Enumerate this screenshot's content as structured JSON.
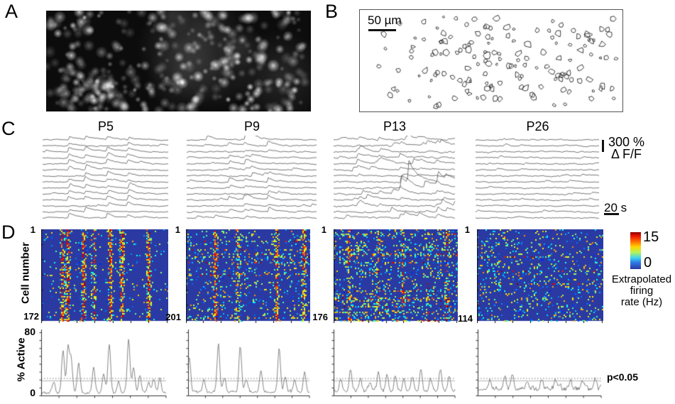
{
  "figure": {
    "panel_a": {
      "label": "A"
    },
    "panel_b": {
      "label": "B",
      "scale_bar_label": "50 µm"
    },
    "panel_c": {
      "label": "C",
      "ages": [
        {
          "label": "P5"
        },
        {
          "label": "P9"
        },
        {
          "label": "P13"
        },
        {
          "label": "P26"
        }
      ],
      "amplitude_scale_value": "300 %",
      "amplitude_scale_unit": "Δ F/F",
      "time_scale": "20 s"
    },
    "panel_d": {
      "label": "D",
      "y_axis_label": "Cell number",
      "heatmaps": [
        {
          "first": "1",
          "last": "172"
        },
        {
          "first": "1",
          "last": "201"
        },
        {
          "first": "1",
          "last": "176"
        },
        {
          "first": "1",
          "last": "114"
        }
      ],
      "colorbar": {
        "max": "15",
        "min": "0",
        "caption_line1": "Extrapolated",
        "caption_line2": "firing",
        "caption_line3": "rate (Hz)"
      },
      "activity": {
        "y_label": "% Active",
        "y_max": "80",
        "y_min": "0",
        "significance": "p<0.05"
      }
    }
  },
  "chart_data": [
    {
      "type": "heatmap",
      "panel": "D",
      "colormap": "jet",
      "value_range": [
        0,
        15
      ],
      "colorbar_label": "Extrapolated firing rate (Hz)",
      "row_axis_label": "Cell number",
      "columns": [
        {
          "age": "P5",
          "n_cells": 172,
          "sync_event_positions": [
            0.16,
            0.205,
            0.325,
            0.41,
            0.54,
            0.63,
            0.84
          ],
          "stripe_strength": 0.6,
          "background_activity": 0.035,
          "hot_rows": 0
        },
        {
          "age": "P9",
          "n_cells": 201,
          "sync_event_positions": [
            0.23,
            0.41,
            0.72,
            0.94
          ],
          "stripe_strength": 0.52,
          "background_activity": 0.09,
          "hot_rows": 9
        },
        {
          "age": "P13",
          "n_cells": 176,
          "sync_event_positions": [
            0.12,
            0.35,
            0.55,
            0.75,
            0.9
          ],
          "stripe_strength": 0.3,
          "background_activity": 0.13,
          "hot_rows": 14
        },
        {
          "age": "P26",
          "n_cells": 114,
          "sync_event_positions": [],
          "stripe_strength": 0,
          "background_activity": 0.11,
          "hot_rows": 3
        }
      ]
    },
    {
      "type": "line",
      "panel": "D",
      "ylabel": "% Active",
      "ylim": [
        0,
        80
      ],
      "threshold_value": 22,
      "threshold_label": "p<0.05",
      "series": [
        {
          "age": "P5",
          "peaks": [
            [
              0.1,
              14
            ],
            [
              0.175,
              55
            ],
            [
              0.215,
              57
            ],
            [
              0.24,
              42
            ],
            [
              0.3,
              38
            ],
            [
              0.42,
              33
            ],
            [
              0.5,
              25
            ],
            [
              0.545,
              62
            ],
            [
              0.62,
              15
            ],
            [
              0.7,
              68
            ],
            [
              0.74,
              33
            ],
            [
              0.79,
              22
            ],
            [
              0.86,
              14
            ],
            [
              0.9,
              18
            ],
            [
              0.95,
              20
            ]
          ]
        },
        {
          "age": "P9",
          "peaks": [
            [
              0.01,
              44
            ],
            [
              0.13,
              16
            ],
            [
              0.25,
              60
            ],
            [
              0.3,
              18
            ],
            [
              0.43,
              58
            ],
            [
              0.48,
              16
            ],
            [
              0.6,
              24
            ],
            [
              0.75,
              55
            ],
            [
              0.8,
              20
            ],
            [
              0.88,
              14
            ],
            [
              0.96,
              26
            ]
          ]
        },
        {
          "age": "P13",
          "peaks": [
            [
              0.06,
              16
            ],
            [
              0.14,
              28
            ],
            [
              0.22,
              16
            ],
            [
              0.3,
              12
            ],
            [
              0.37,
              24
            ],
            [
              0.44,
              20
            ],
            [
              0.51,
              18
            ],
            [
              0.58,
              14
            ],
            [
              0.65,
              19
            ],
            [
              0.72,
              26
            ],
            [
              0.8,
              16
            ],
            [
              0.88,
              28
            ],
            [
              0.95,
              16
            ]
          ]
        },
        {
          "age": "P26",
          "peaks": [
            [
              0.1,
              12
            ],
            [
              0.22,
              16
            ],
            [
              0.28,
              20
            ],
            [
              0.4,
              10
            ],
            [
              0.52,
              13
            ],
            [
              0.63,
              12
            ],
            [
              0.75,
              10
            ],
            [
              0.85,
              9
            ],
            [
              0.95,
              14
            ]
          ]
        }
      ]
    },
    {
      "type": "line",
      "panel": "C",
      "description": "ΔF/F calcium fluorescence traces, 14 cells per age",
      "n_traces": 14,
      "amplitude_scale_pct": 300,
      "time_scale_s": 20,
      "sync_event_positions": {
        "P5": [
          0.21,
          0.34,
          0.52,
          0.68
        ],
        "P9": [
          0.33,
          0.45,
          0.5,
          0.63
        ],
        "P13": [
          0.2,
          0.38,
          0.55,
          0.7,
          0.85
        ],
        "P26": []
      }
    }
  ]
}
